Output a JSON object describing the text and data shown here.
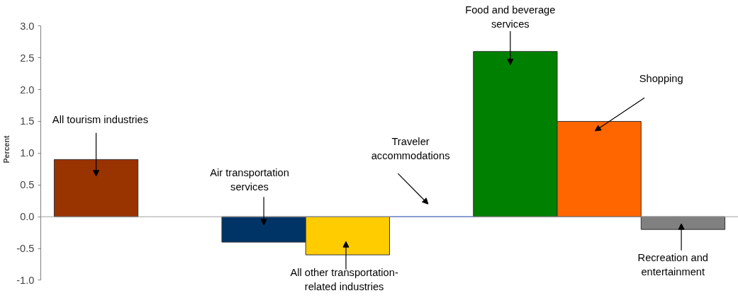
{
  "chart_data": {
    "type": "bar",
    "ylabel": "Percent",
    "categories": [
      null,
      null,
      null,
      null,
      null,
      null,
      null,
      null
    ],
    "annotations": [
      "All tourism industries",
      "Air transportation\nservices",
      "All other transportation-\nrelated industries",
      "Traveler\naccommodations",
      "Food and beverage\nservices",
      "Shopping",
      "Recreation and\nentertainment"
    ],
    "values": [
      0.9,
      null,
      -0.4,
      -0.6,
      0.0,
      2.6,
      1.5,
      -0.2
    ],
    "colors": [
      "#993300",
      "#ffffff",
      "#003366",
      "#ffcc00",
      "#3366ff",
      "#008000",
      "#ff6600",
      "#808080"
    ],
    "ylim": [
      -1.0,
      3.0
    ],
    "yticks": [
      {
        "value": -1,
        "label": "-1.0"
      },
      {
        "value": -0.5,
        "label": "-0.5"
      },
      {
        "value": 0,
        "label": "0.0"
      },
      {
        "value": 0.5,
        "label": "0.5"
      },
      {
        "value": 1,
        "label": "1.0"
      },
      {
        "value": 1.5,
        "label": "1.5"
      },
      {
        "value": 2,
        "label": "2.0"
      },
      {
        "value": 2.5,
        "label": "2.5"
      },
      {
        "value": 3,
        "label": "3.0"
      }
    ],
    "ref_lines": [
      {
        "axis": "y",
        "value": 0,
        "color": "#a0a0a0",
        "line_style": "solid"
      }
    ],
    "grid": false,
    "legend": false
  }
}
